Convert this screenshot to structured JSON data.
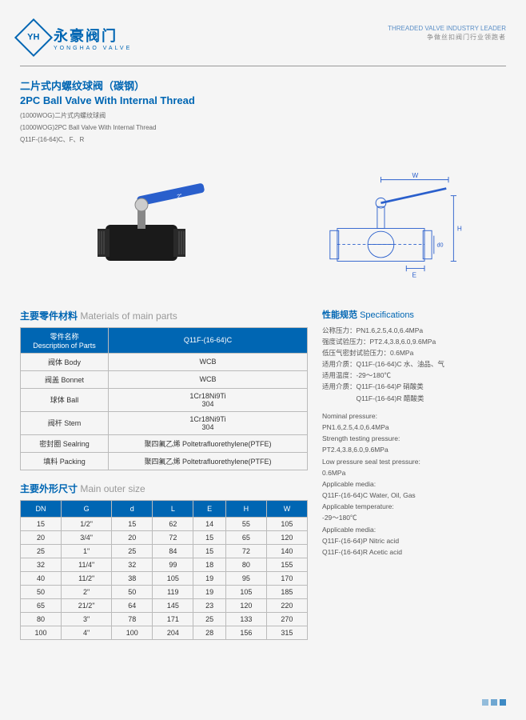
{
  "header": {
    "logo_cn": "永豪阀门",
    "logo_en": "YONGHAO VALVE",
    "logo_mark": "YH",
    "tagline1": "THREADED VALVE INDUSTRY LEADER",
    "tagline2": "争做丝扣阀门行业领跑者"
  },
  "title": {
    "cn": "二片式内螺纹球阀（碳钢）",
    "en": "2PC Ball Valve With Internal Thread",
    "sub1": "(1000WOG)二片式内螺纹球阀",
    "sub2": "(1000WOG)2PC Ball Valve With Internal Thread",
    "sub3": "Q11F-(16-64)C、F、R"
  },
  "diagram_labels": {
    "W": "W",
    "H": "H",
    "d0": "d0",
    "E": "E"
  },
  "materials": {
    "heading_cn": "主要零件材料",
    "heading_en": "Materials of main parts",
    "col1": "零件名称\nDescription of Parts",
    "col2": "Q11F-(16-64)C",
    "rows": [
      {
        "label": "阀体 Body",
        "value": "WCB"
      },
      {
        "label": "阀盖 Bonnet",
        "value": "WCB"
      },
      {
        "label": "球体 Ball",
        "value": "1Cr18Ni9Ti\n304"
      },
      {
        "label": "阀杆 Stem",
        "value": "1Cr18Ni9Ti\n304"
      },
      {
        "label": "密封圈 Sealring",
        "value": "聚四氟乙烯 Poltetrafluorethylene(PTFE)"
      },
      {
        "label": "填料 Packing",
        "value": "聚四氟乙烯 Poltetrafluorethylene(PTFE)"
      }
    ]
  },
  "sizes": {
    "heading_cn": "主要外形尺寸",
    "heading_en": "Main outer size",
    "cols": [
      "DN",
      "G",
      "d",
      "L",
      "E",
      "H",
      "W"
    ],
    "rows": [
      [
        "15",
        "1/2\"",
        "15",
        "62",
        "14",
        "55",
        "105"
      ],
      [
        "20",
        "3/4\"",
        "20",
        "72",
        "15",
        "65",
        "120"
      ],
      [
        "25",
        "1\"",
        "25",
        "84",
        "15",
        "72",
        "140"
      ],
      [
        "32",
        "11/4\"",
        "32",
        "99",
        "18",
        "80",
        "155"
      ],
      [
        "40",
        "11/2\"",
        "38",
        "105",
        "19",
        "95",
        "170"
      ],
      [
        "50",
        "2\"",
        "50",
        "119",
        "19",
        "105",
        "185"
      ],
      [
        "65",
        "21/2\"",
        "64",
        "145",
        "23",
        "120",
        "220"
      ],
      [
        "80",
        "3\"",
        "78",
        "171",
        "25",
        "133",
        "270"
      ],
      [
        "100",
        "4\"",
        "100",
        "204",
        "28",
        "156",
        "315"
      ]
    ]
  },
  "specs": {
    "heading_cn": "性能规范",
    "heading_en": "Specifications",
    "cn_lines": [
      "公称压力：PN1.6,2.5,4.0,6.4MPa",
      "强度试验压力：PT2.4,3.8,6.0,9.6MPa",
      "低压气密封试验压力：0.6MPa",
      "适用介质：Q11F-(16-64)C 水、油品、气",
      "适用温度：-29～180℃",
      "适用介质：Q11F-(16-64)P 硝酸类",
      "　　　　　Q11F-(16-64)R 醋酸类"
    ],
    "en_lines": [
      "Nominal pressure:",
      "PN1.6,2.5,4.0,6.4MPa",
      "Strength testing pressure:",
      "PT2.4,3.8,6.0,9.6MPa",
      "Low pressure seal test pressure:",
      "0.6MPa",
      "Applicable media:",
      "Q11F-(16-64)C Water, Oil, Gas",
      "Applicable temperature:",
      "-29～180℃",
      "Applicable media:",
      "Q11F-(16-64)P Nitric acid",
      "Q11F-(16-64)R Acetic acid"
    ]
  },
  "colors": {
    "brand": "#0066b3",
    "grid": "#bbbbbb",
    "bg": "#f5f5f5"
  }
}
